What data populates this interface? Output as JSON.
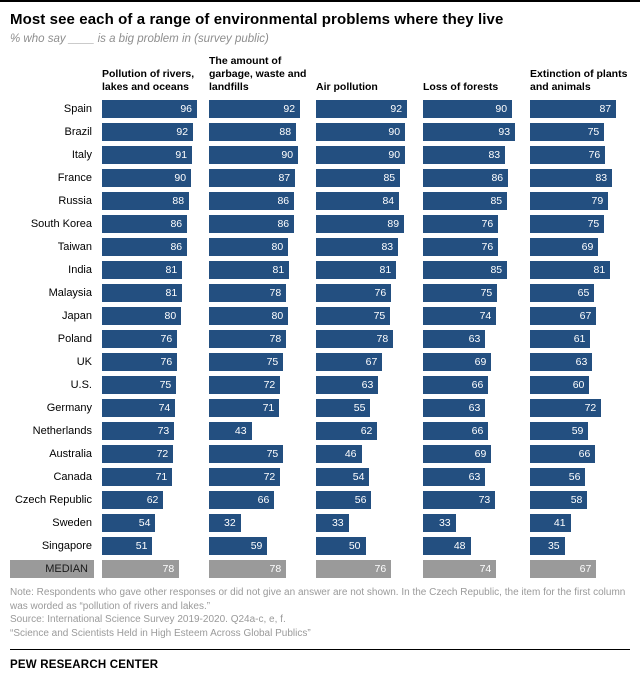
{
  "header": {
    "title": "Most see each of a range of environmental problems where they live",
    "subtitle": "% who say ____ is a big problem in (survey public)"
  },
  "chart_data": {
    "type": "bar",
    "orientation": "horizontal",
    "xlim": [
      0,
      100
    ],
    "grid": false,
    "legend": "none",
    "bar_color": "#234f80",
    "median_color": "#9a9a9a",
    "columns": [
      "Pollution of rivers, lakes and oceans",
      "The amount of garbage, waste and landfills",
      "Air pollution",
      "Loss of forests",
      "Extinction of plants and animals"
    ],
    "rows": [
      {
        "label": "Spain",
        "values": [
          96,
          92,
          92,
          90,
          87
        ],
        "median": false
      },
      {
        "label": "Brazil",
        "values": [
          92,
          88,
          90,
          93,
          75
        ],
        "median": false
      },
      {
        "label": "Italy",
        "values": [
          91,
          90,
          90,
          83,
          76
        ],
        "median": false
      },
      {
        "label": "France",
        "values": [
          90,
          87,
          85,
          86,
          83
        ],
        "median": false
      },
      {
        "label": "Russia",
        "values": [
          88,
          86,
          84,
          85,
          79
        ],
        "median": false
      },
      {
        "label": "South Korea",
        "values": [
          86,
          86,
          89,
          76,
          75
        ],
        "median": false
      },
      {
        "label": "Taiwan",
        "values": [
          86,
          80,
          83,
          76,
          69
        ],
        "median": false
      },
      {
        "label": "India",
        "values": [
          81,
          81,
          81,
          85,
          81
        ],
        "median": false
      },
      {
        "label": "Malaysia",
        "values": [
          81,
          78,
          76,
          75,
          65
        ],
        "median": false
      },
      {
        "label": "Japan",
        "values": [
          80,
          80,
          75,
          74,
          67
        ],
        "median": false
      },
      {
        "label": "Poland",
        "values": [
          76,
          78,
          78,
          63,
          61
        ],
        "median": false
      },
      {
        "label": "UK",
        "values": [
          76,
          75,
          67,
          69,
          63
        ],
        "median": false
      },
      {
        "label": "U.S.",
        "values": [
          75,
          72,
          63,
          66,
          60
        ],
        "median": false
      },
      {
        "label": "Germany",
        "values": [
          74,
          71,
          55,
          63,
          72
        ],
        "median": false
      },
      {
        "label": "Netherlands",
        "values": [
          73,
          43,
          62,
          66,
          59
        ],
        "median": false
      },
      {
        "label": "Australia",
        "values": [
          72,
          75,
          46,
          69,
          66
        ],
        "median": false
      },
      {
        "label": "Canada",
        "values": [
          71,
          72,
          54,
          63,
          56
        ],
        "median": false
      },
      {
        "label": "Czech Republic",
        "values": [
          62,
          66,
          56,
          73,
          58
        ],
        "median": false
      },
      {
        "label": "Sweden",
        "values": [
          54,
          32,
          33,
          33,
          41
        ],
        "median": false
      },
      {
        "label": "Singapore",
        "values": [
          51,
          59,
          50,
          48,
          35
        ],
        "median": false
      },
      {
        "label": "MEDIAN",
        "values": [
          78,
          78,
          76,
          74,
          67
        ],
        "median": true
      }
    ]
  },
  "notes": {
    "note": "Note: Respondents who gave other responses or did not give an answer are not shown. In the Czech Republic, the item for the first column was worded as “pollution of rivers and lakes.”",
    "source": "Source: International Science Survey 2019-2020. Q24a-c, e, f.",
    "report": "“Science and Scientists Held in High Esteem Across Global Publics”"
  },
  "footer": {
    "brand": "PEW RESEARCH CENTER"
  }
}
